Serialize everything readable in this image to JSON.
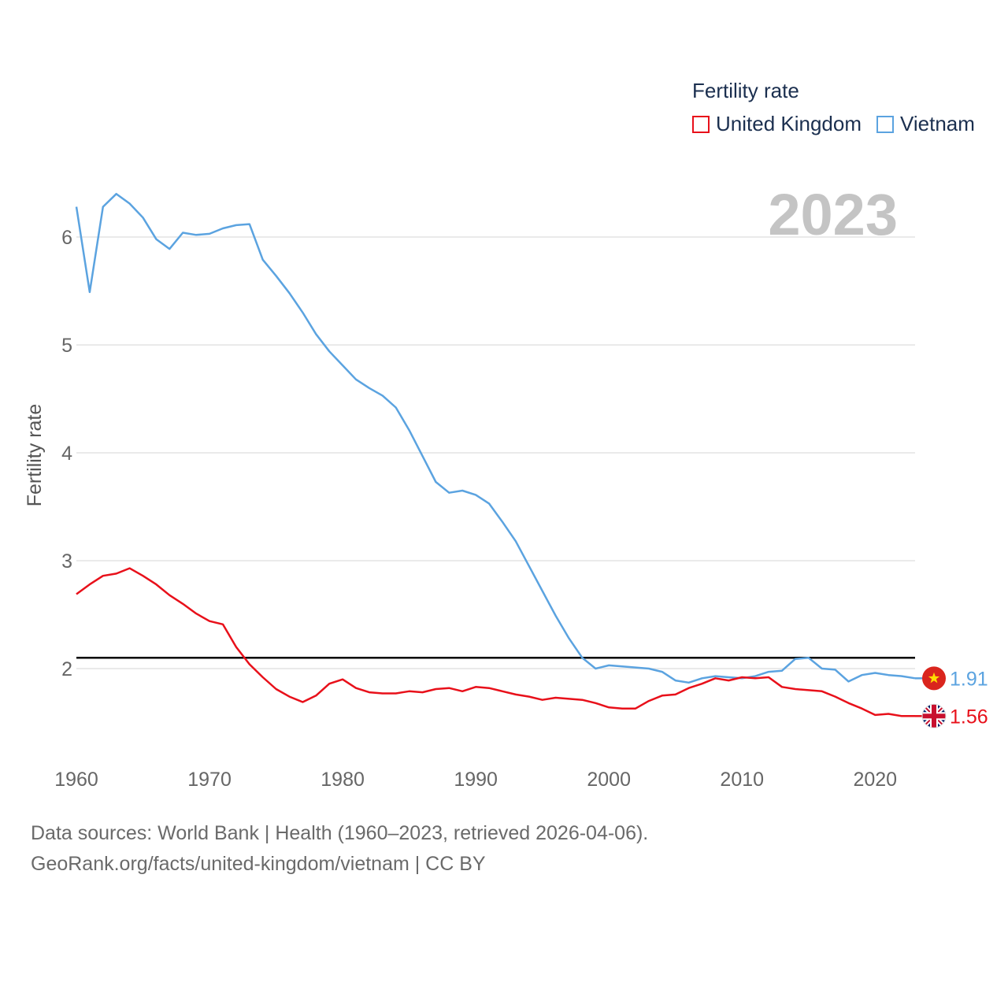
{
  "legend": {
    "title": "Fertility rate",
    "items": [
      {
        "label": "United Kingdom",
        "color": "#e8101a"
      },
      {
        "label": "Vietnam",
        "color": "#5ba3e0"
      }
    ]
  },
  "year_display": "2023",
  "footer": {
    "line1": "Data sources: World Bank | Health (1960–2023, retrieved 2026-04-06).",
    "line2": "GeoRank.org/facts/united-kingdom/vietnam | CC BY"
  },
  "chart_data": {
    "type": "line",
    "title": "Fertility rate",
    "xlabel": "",
    "ylabel": "Fertility rate",
    "xlim": [
      1960,
      2023
    ],
    "ylim": [
      1.2,
      6.6
    ],
    "x_ticks": [
      1960,
      1970,
      1980,
      1990,
      2000,
      2010,
      2020
    ],
    "y_ticks": [
      2,
      3,
      4,
      5,
      6
    ],
    "grid": true,
    "reference_line": {
      "value": 2.1,
      "color": "#000000"
    },
    "x": [
      1960,
      1961,
      1962,
      1963,
      1964,
      1965,
      1966,
      1967,
      1968,
      1969,
      1970,
      1971,
      1972,
      1973,
      1974,
      1975,
      1976,
      1977,
      1978,
      1979,
      1980,
      1981,
      1982,
      1983,
      1984,
      1985,
      1986,
      1987,
      1988,
      1989,
      1990,
      1991,
      1992,
      1993,
      1994,
      1995,
      1996,
      1997,
      1998,
      1999,
      2000,
      2001,
      2002,
      2003,
      2004,
      2005,
      2006,
      2007,
      2008,
      2009,
      2010,
      2011,
      2012,
      2013,
      2014,
      2015,
      2016,
      2017,
      2018,
      2019,
      2020,
      2021,
      2022,
      2023
    ],
    "series": [
      {
        "name": "Vietnam",
        "color": "#5ba3e0",
        "end_label": "1.91",
        "values": [
          6.28,
          5.49,
          6.28,
          6.4,
          6.31,
          6.18,
          5.98,
          5.89,
          6.04,
          6.02,
          6.03,
          6.08,
          6.11,
          6.12,
          5.79,
          5.64,
          5.48,
          5.3,
          5.1,
          4.94,
          4.81,
          4.68,
          4.6,
          4.53,
          4.42,
          4.21,
          3.97,
          3.73,
          3.63,
          3.65,
          3.61,
          3.53,
          3.36,
          3.18,
          2.95,
          2.72,
          2.49,
          2.28,
          2.1,
          2.0,
          2.03,
          2.02,
          2.01,
          2.0,
          1.97,
          1.89,
          1.87,
          1.91,
          1.93,
          1.92,
          1.91,
          1.93,
          1.97,
          1.98,
          2.09,
          2.1,
          2.0,
          1.99,
          1.88,
          1.94,
          1.96,
          1.94,
          1.93,
          1.91
        ]
      },
      {
        "name": "United Kingdom",
        "color": "#e8101a",
        "end_label": "1.56",
        "values": [
          2.69,
          2.78,
          2.86,
          2.88,
          2.93,
          2.86,
          2.78,
          2.68,
          2.6,
          2.51,
          2.44,
          2.41,
          2.2,
          2.04,
          1.92,
          1.81,
          1.74,
          1.69,
          1.75,
          1.86,
          1.9,
          1.82,
          1.78,
          1.77,
          1.77,
          1.79,
          1.78,
          1.81,
          1.82,
          1.79,
          1.83,
          1.82,
          1.79,
          1.76,
          1.74,
          1.71,
          1.73,
          1.72,
          1.71,
          1.68,
          1.64,
          1.63,
          1.63,
          1.7,
          1.75,
          1.76,
          1.82,
          1.86,
          1.91,
          1.89,
          1.92,
          1.91,
          1.92,
          1.83,
          1.81,
          1.8,
          1.79,
          1.74,
          1.68,
          1.63,
          1.57,
          1.58,
          1.56,
          1.56
        ]
      }
    ]
  }
}
